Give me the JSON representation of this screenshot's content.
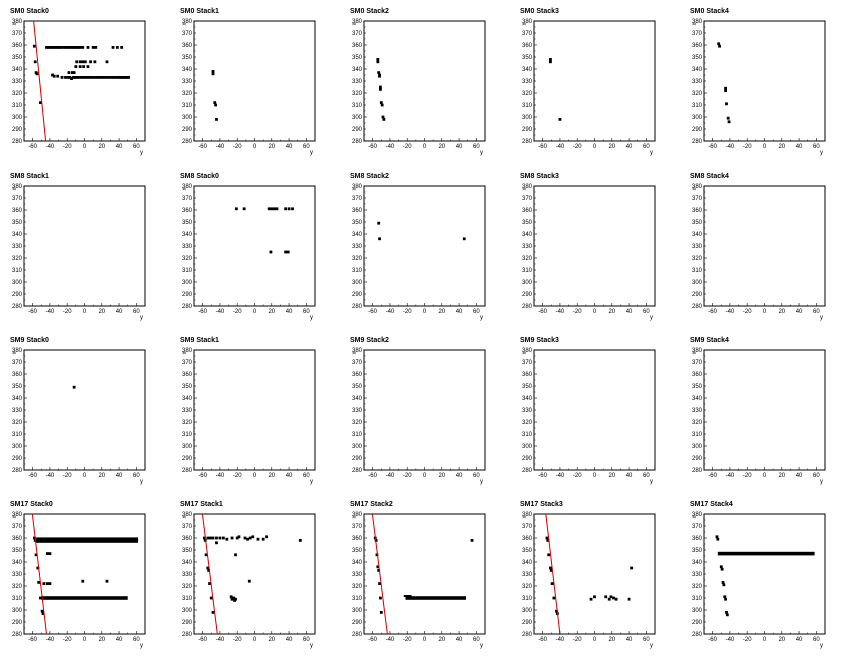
{
  "chart_data": {
    "type": "scatter",
    "grid": false,
    "xlabel": "y",
    "ylabel": "x",
    "xlim": [
      -70,
      70
    ],
    "ylim": [
      280,
      380
    ],
    "xticks": [
      -60,
      -40,
      -20,
      0,
      20,
      40,
      60
    ],
    "yticks": [
      280,
      290,
      300,
      310,
      320,
      330,
      340,
      350,
      360,
      370,
      380
    ],
    "colors": {
      "points": "#000000",
      "fit_line": "#cc0000",
      "frame": "#000000"
    },
    "panels": [
      {
        "title": "SM0 Stack0",
        "points": [
          [
            -58,
            359
          ],
          [
            -57,
            346
          ],
          [
            -56,
            337
          ],
          [
            -55,
            336
          ],
          [
            -51,
            312
          ],
          [
            -44,
            358
          ],
          [
            -42,
            358
          ],
          [
            -40,
            358
          ],
          [
            -38,
            358
          ],
          [
            -36,
            358
          ],
          [
            -34,
            358
          ],
          [
            -32,
            358
          ],
          [
            -30,
            358
          ],
          [
            -28,
            358
          ],
          [
            -26,
            358
          ],
          [
            -23,
            358
          ],
          [
            -21,
            358
          ],
          [
            -19,
            358
          ],
          [
            -17,
            358
          ],
          [
            -15,
            358
          ],
          [
            -13,
            358
          ],
          [
            -11,
            358
          ],
          [
            -9,
            358
          ],
          [
            -7,
            358
          ],
          [
            -5,
            358
          ],
          [
            -2,
            358
          ],
          [
            4,
            358
          ],
          [
            10,
            358
          ],
          [
            13,
            358
          ],
          [
            33,
            358
          ],
          [
            38,
            358
          ],
          [
            43,
            358
          ],
          [
            -37,
            335
          ],
          [
            -35,
            334
          ],
          [
            -31,
            334
          ],
          [
            -26,
            333
          ],
          [
            -22,
            333
          ],
          [
            -19,
            333
          ],
          [
            -17,
            333
          ],
          [
            -15,
            332
          ],
          [
            -13,
            333
          ],
          [
            -11,
            333
          ],
          [
            -9,
            333
          ],
          [
            -7,
            333
          ],
          [
            -4,
            333
          ],
          [
            -1,
            333
          ],
          [
            2,
            333
          ],
          [
            5,
            333
          ],
          [
            8,
            333
          ],
          [
            11,
            333
          ],
          [
            14,
            333
          ],
          [
            17,
            333
          ],
          [
            20,
            333
          ],
          [
            23,
            333
          ],
          [
            26,
            333
          ],
          [
            29,
            333
          ],
          [
            32,
            333
          ],
          [
            34,
            333
          ],
          [
            37,
            333
          ],
          [
            39,
            333
          ],
          [
            41,
            333
          ],
          [
            43,
            333
          ],
          [
            45,
            333
          ],
          [
            47,
            333
          ],
          [
            49,
            333
          ],
          [
            51,
            333
          ],
          [
            -18,
            337
          ],
          [
            -14,
            337
          ],
          [
            -12,
            337
          ],
          [
            -9,
            346
          ],
          [
            -5,
            346
          ],
          [
            -2,
            346
          ],
          [
            1,
            346
          ],
          [
            7,
            346
          ],
          [
            12,
            346
          ],
          [
            26,
            346
          ],
          [
            -10,
            342
          ],
          [
            -5,
            342
          ],
          [
            -1,
            342
          ],
          [
            4,
            342
          ]
        ],
        "fit": [
          [
            -60,
            388
          ],
          [
            -45,
            280
          ]
        ]
      },
      {
        "title": "SM0 Stack1",
        "points": [
          [
            -48,
            338
          ],
          [
            -48,
            336
          ],
          [
            -46,
            312
          ],
          [
            -45,
            310
          ],
          [
            -44,
            298
          ]
        ],
        "fit": null
      },
      {
        "title": "SM0 Stack2",
        "points": [
          [
            -54,
            348
          ],
          [
            -54,
            346
          ],
          [
            -53,
            337
          ],
          [
            -52,
            335
          ],
          [
            -52,
            334
          ],
          [
            -51,
            325
          ],
          [
            -51,
            323
          ],
          [
            -50,
            312
          ],
          [
            -49,
            310
          ],
          [
            -48,
            300
          ],
          [
            -47,
            298
          ]
        ],
        "fit": null
      },
      {
        "title": "SM0 Stack3",
        "points": [
          [
            -51,
            348
          ],
          [
            -51,
            346
          ],
          [
            -40,
            298
          ]
        ],
        "fit": null
      },
      {
        "title": "SM0 Stack4",
        "points": [
          [
            -53,
            361
          ],
          [
            -52,
            359
          ],
          [
            -45,
            324
          ],
          [
            -45,
            322
          ],
          [
            -44,
            311
          ],
          [
            -42,
            299
          ],
          [
            -41,
            296
          ]
        ],
        "fit": null
      },
      {
        "title": "SM8 Stack1",
        "points": [],
        "fit": null
      },
      {
        "title": "SM8 Stack0",
        "points": [
          [
            -21,
            361
          ],
          [
            -12,
            361
          ],
          [
            17,
            361
          ],
          [
            20,
            361
          ],
          [
            23,
            361
          ],
          [
            26,
            361
          ],
          [
            36,
            361
          ],
          [
            40,
            361
          ],
          [
            44,
            361
          ],
          [
            19,
            325
          ],
          [
            36,
            325
          ],
          [
            39,
            325
          ]
        ],
        "fit": null
      },
      {
        "title": "SM8 Stack2",
        "points": [
          [
            -53,
            349
          ],
          [
            -52,
            336
          ],
          [
            46,
            336
          ]
        ],
        "fit": null
      },
      {
        "title": "SM8 Stack3",
        "points": [],
        "fit": null
      },
      {
        "title": "SM8 Stack4",
        "points": [],
        "fit": null
      },
      {
        "title": "SM9 Stack0",
        "points": [
          [
            -12,
            349
          ]
        ],
        "fit": null
      },
      {
        "title": "SM9 Stack1",
        "points": [],
        "fit": null
      },
      {
        "title": "SM9 Stack2",
        "points": [],
        "fit": null
      },
      {
        "title": "SM9 Stack3",
        "points": [],
        "fit": null
      },
      {
        "title": "SM9 Stack4",
        "points": [],
        "fit": null
      },
      {
        "title": "SM17 Stack0",
        "points": [
          [
            -58,
            360
          ],
          [
            -57,
            358
          ],
          [
            -56,
            346
          ],
          [
            -54,
            335
          ],
          [
            -53,
            323
          ],
          [
            -51,
            310
          ],
          [
            -49,
            299
          ],
          [
            -48,
            297
          ],
          [
            -43,
            347
          ],
          [
            -40,
            347
          ],
          [
            -47,
            322
          ],
          [
            -43,
            322
          ],
          [
            -40,
            322
          ],
          [
            -2,
            324
          ],
          [
            26,
            324
          ]
        ],
        "bands": [
          {
            "x0": -56,
            "x1": 62,
            "y": 359,
            "h": 3
          },
          {
            "x0": -56,
            "x1": 62,
            "y": 357,
            "h": 2
          },
          {
            "x0": -50,
            "x1": 50,
            "y": 310,
            "h": 3
          }
        ],
        "fit": [
          [
            -62,
            390
          ],
          [
            -44,
            280
          ]
        ]
      },
      {
        "title": "SM17 Stack1",
        "points": [
          [
            -58,
            360
          ],
          [
            -57,
            358
          ],
          [
            -56,
            346
          ],
          [
            -54,
            335
          ],
          [
            -53,
            333
          ],
          [
            -52,
            322
          ],
          [
            -50,
            310
          ],
          [
            -48,
            298
          ],
          [
            -54,
            360
          ],
          [
            -51,
            360
          ],
          [
            -48,
            360
          ],
          [
            -44,
            360
          ],
          [
            -40,
            360
          ],
          [
            -36,
            360
          ],
          [
            -32,
            359
          ],
          [
            -26,
            360
          ],
          [
            -20,
            360
          ],
          [
            -18,
            361
          ],
          [
            -11,
            360
          ],
          [
            -8,
            359
          ],
          [
            -5,
            360
          ],
          [
            -2,
            361
          ],
          [
            4,
            359
          ],
          [
            10,
            359
          ],
          [
            14,
            361
          ],
          [
            53,
            358
          ],
          [
            -44,
            356
          ],
          [
            -22,
            346
          ],
          [
            -27,
            311
          ],
          [
            -26,
            309
          ],
          [
            -24,
            310
          ],
          [
            -23,
            308
          ],
          [
            -22,
            309
          ],
          [
            -6,
            324
          ]
        ],
        "fit": [
          [
            -62,
            390
          ],
          [
            -43,
            280
          ]
        ]
      },
      {
        "title": "SM17 Stack2",
        "points": [
          [
            -57,
            360
          ],
          [
            -56,
            358
          ],
          [
            -55,
            346
          ],
          [
            -54,
            336
          ],
          [
            -53,
            333
          ],
          [
            -52,
            322
          ],
          [
            -51,
            310
          ],
          [
            -50,
            298
          ],
          [
            55,
            358
          ]
        ],
        "bands": [
          {
            "x0": -22,
            "x1": 48,
            "y": 310,
            "h": 3
          },
          {
            "x0": -24,
            "x1": -15,
            "y": 312,
            "h": 1
          }
        ],
        "fit": [
          [
            -62,
            390
          ],
          [
            -43,
            280
          ]
        ]
      },
      {
        "title": "SM17 Stack3",
        "points": [
          [
            -55,
            360
          ],
          [
            -54,
            358
          ],
          [
            -53,
            346
          ],
          [
            -51,
            335
          ],
          [
            -50,
            333
          ],
          [
            -49,
            322
          ],
          [
            -47,
            310
          ],
          [
            -44,
            299
          ],
          [
            -43,
            297
          ],
          [
            -4,
            309
          ],
          [
            0,
            311
          ],
          [
            13,
            311
          ],
          [
            17,
            309
          ],
          [
            19,
            311
          ],
          [
            22,
            310
          ],
          [
            25,
            309
          ],
          [
            40,
            309
          ],
          [
            43,
            335
          ]
        ],
        "fit": [
          [
            -58,
            390
          ],
          [
            -40,
            280
          ]
        ]
      },
      {
        "title": "SM17 Stack4",
        "points": [
          [
            -55,
            361
          ],
          [
            -54,
            359
          ],
          [
            -50,
            336
          ],
          [
            -49,
            334
          ],
          [
            -48,
            323
          ],
          [
            -47,
            321
          ],
          [
            -46,
            311
          ],
          [
            -45,
            309
          ],
          [
            -44,
            298
          ],
          [
            -43,
            296
          ]
        ],
        "bands": [
          {
            "x0": -54,
            "x1": 58,
            "y": 347,
            "h": 3
          }
        ],
        "fit": null
      }
    ]
  }
}
